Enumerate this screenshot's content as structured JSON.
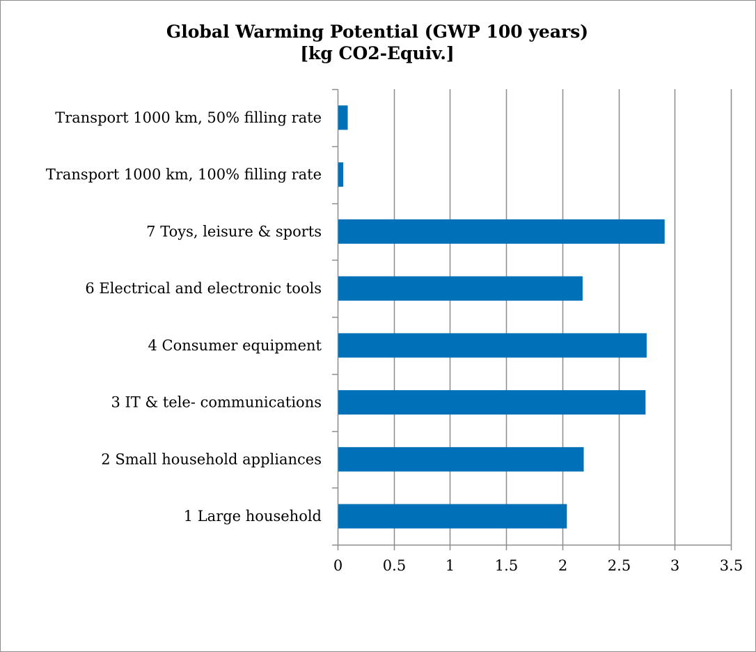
{
  "chart_data": {
    "type": "bar",
    "orientation": "horizontal",
    "title": "Global Warming Potential (GWP 100 years)",
    "subtitle": "[kg CO2-Equiv.]",
    "xlabel": "",
    "ylabel": "",
    "categories": [
      "Transport 1000 km, 50% filling rate",
      "Transport 1000 km, 100% filling rate",
      "7 Toys, leisure & sports",
      "6 Electrical and electronic tools",
      "4 Consumer equipment",
      "3 IT & tele- communications",
      "2 Small household appliances",
      "1 Large household"
    ],
    "values": [
      0.09,
      0.05,
      2.91,
      2.18,
      2.75,
      2.74,
      2.19,
      2.04
    ],
    "xlim": [
      0,
      3.5
    ],
    "xticks": [
      "0",
      "0.5",
      "1",
      "1.5",
      "2",
      "2.5",
      "3",
      "3.5"
    ],
    "grid": true,
    "legend": "none",
    "colors": {
      "bar": "#0070B8",
      "grid": "#8c8c8c",
      "axis": "#8c8c8c"
    }
  }
}
